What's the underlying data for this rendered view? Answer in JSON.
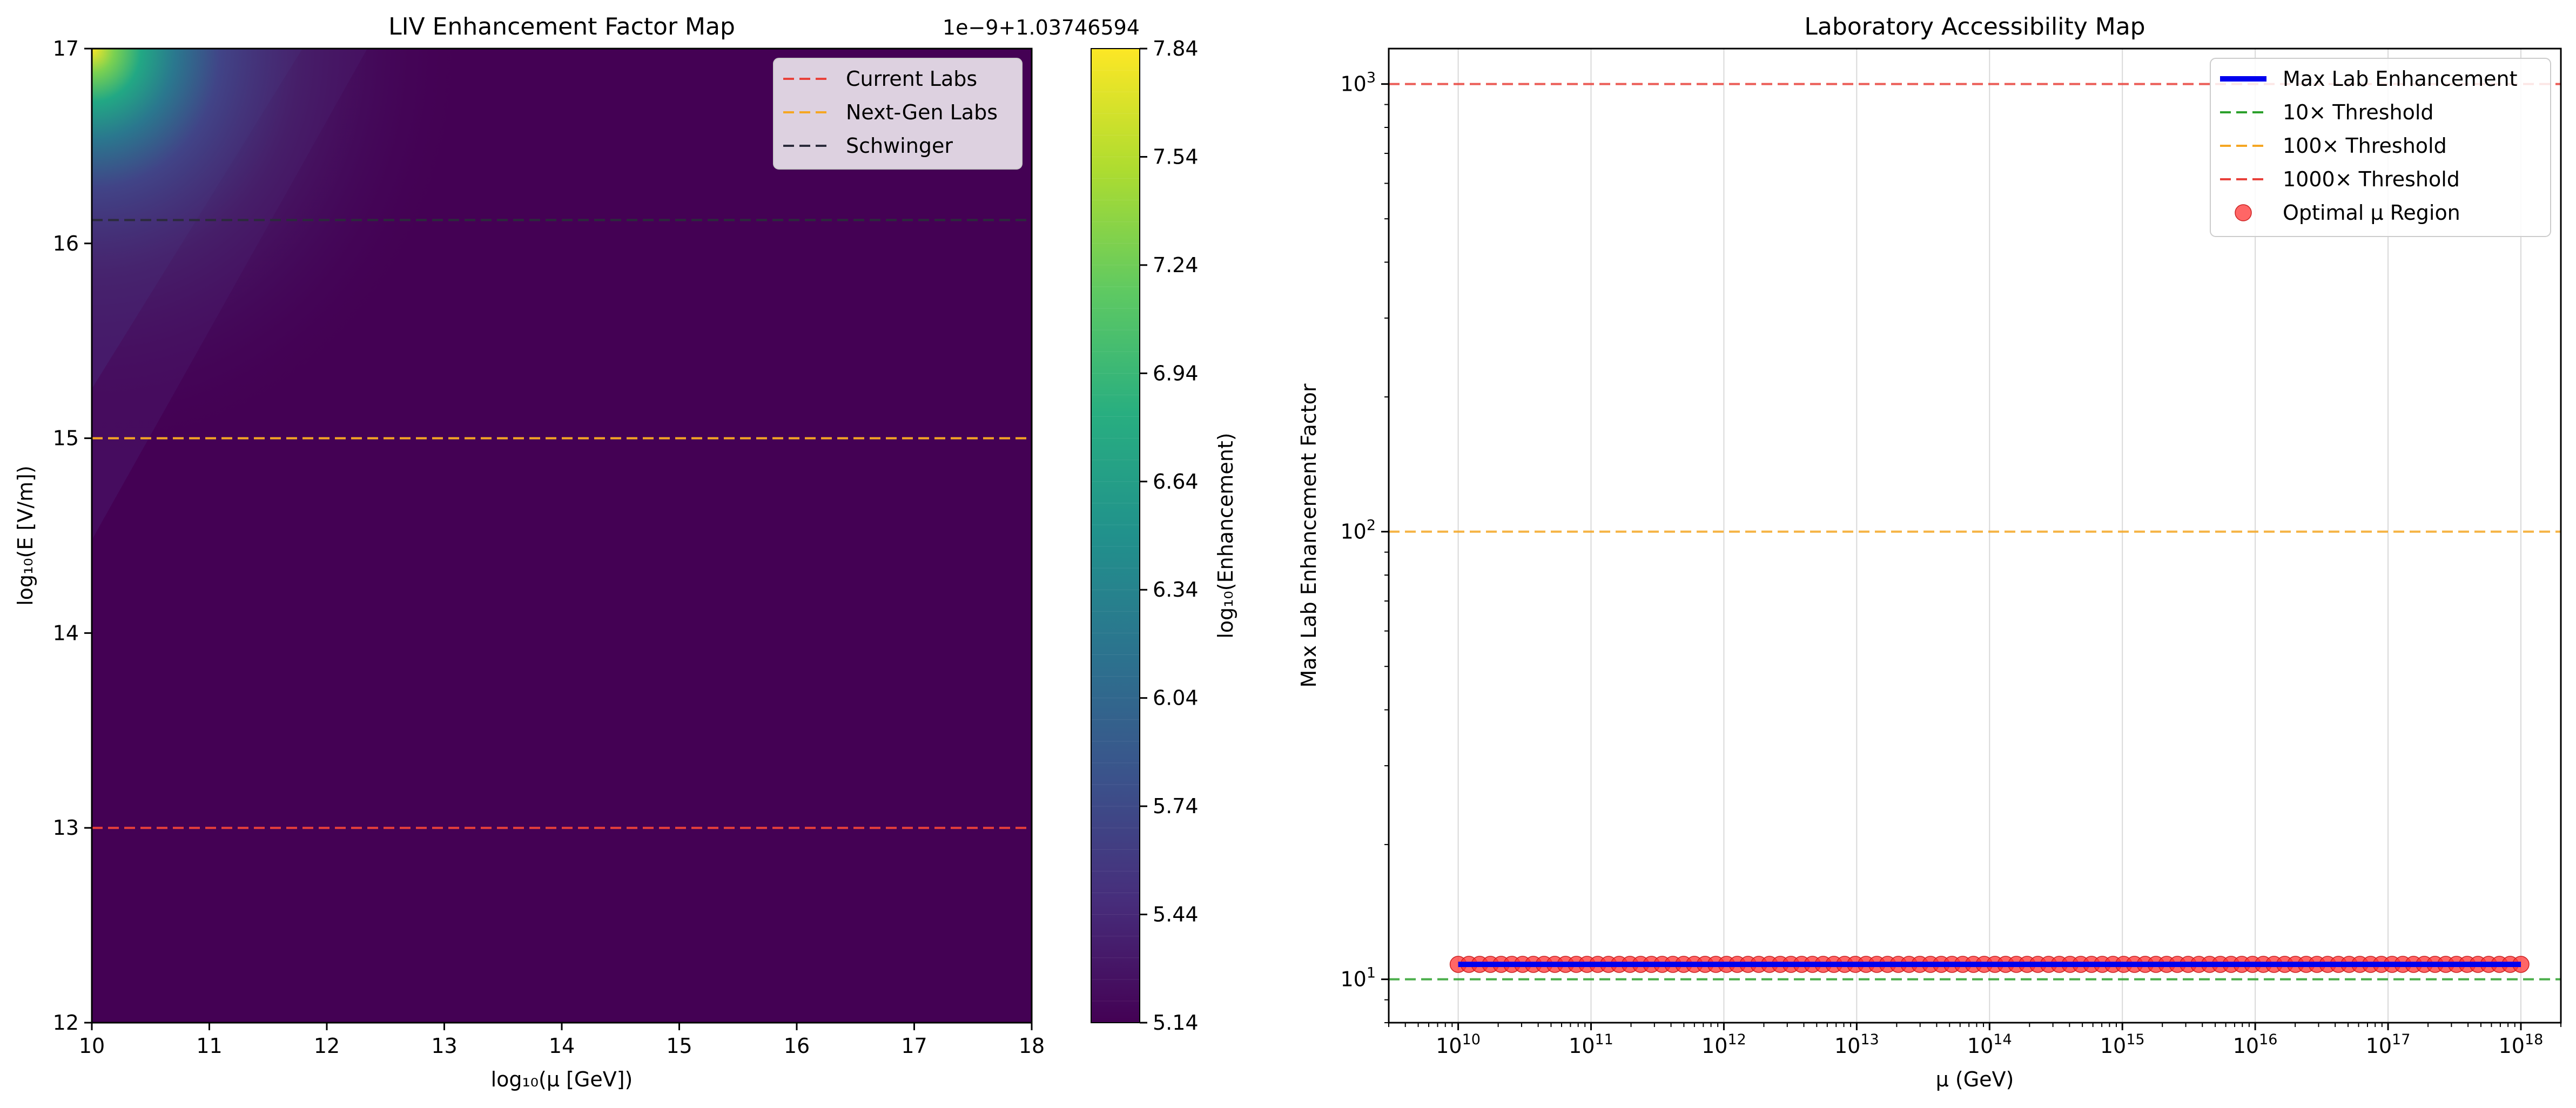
{
  "colors": {
    "viridis_low": "#440154",
    "viridis_high": "#fde725",
    "current_labs": "#e8413a",
    "next_gen_labs": "#f5a623",
    "schwinger": "#2b2b3b",
    "max_lab_line": "#0000ee",
    "threshold_10": "#2ca02c",
    "threshold_100": "#f5a623",
    "threshold_1000": "#e8413a",
    "optimal_region": "#ff3333"
  },
  "chart_data": [
    {
      "type": "heatmap",
      "title": "LIV Enhancement Factor Map",
      "xlabel": "log₁₀(μ [GeV])",
      "ylabel": "log₁₀(E [V/m])",
      "xlim": [
        10,
        18
      ],
      "ylim": [
        12,
        17
      ],
      "xticks": [
        "10",
        "11",
        "12",
        "13",
        "14",
        "15",
        "16",
        "17",
        "18"
      ],
      "yticks": [
        "12",
        "13",
        "14",
        "15",
        "16",
        "17"
      ],
      "colorbar": {
        "label": "log₁₀(Enhancement)",
        "offset_text": "1e−9+1.03746594",
        "min": 5.14,
        "max": 7.84,
        "ticks": [
          "5.14",
          "5.44",
          "5.74",
          "6.04",
          "6.34",
          "6.64",
          "6.94",
          "7.24",
          "7.54",
          "7.84"
        ]
      },
      "hlines": [
        {
          "name": "Current Labs",
          "y": 13,
          "color": "#e8413a"
        },
        {
          "name": "Next-Gen Labs",
          "y": 15,
          "color": "#f5a623"
        },
        {
          "name": "Schwinger",
          "y": 16.12,
          "color": "#2b2b3b"
        }
      ],
      "legend_labels": [
        "Current Labs",
        "Next-Gen Labs",
        "Schwinger"
      ],
      "legend_position": "top-right",
      "grid": false
    },
    {
      "type": "line",
      "title": "Laboratory Accessibility Map",
      "xlabel": "μ (GeV)",
      "ylabel": "Max Lab Enhancement Factor",
      "xscale": "log",
      "yscale": "log",
      "xlim": [
        3000000000.0,
        2e+18
      ],
      "ylim": [
        8,
        1200
      ],
      "xtick_exponents": [
        "10",
        "11",
        "12",
        "13",
        "14",
        "15",
        "16",
        "17",
        "18"
      ],
      "ytick_exponents": [
        "1",
        "2",
        "3"
      ],
      "series": [
        {
          "name": "Max Lab Enhancement",
          "kind": "line",
          "x_range": [
            10000000000.0,
            1e+18
          ],
          "y": 10.8,
          "color": "#0000ee"
        },
        {
          "name": "Optimal μ Region",
          "kind": "scatter",
          "x_range": [
            10000000000.0,
            1e+18
          ],
          "count": 100,
          "y": 10.8,
          "color": "#ff3333"
        }
      ],
      "hlines": [
        {
          "name": "10× Threshold",
          "y": 10,
          "color": "#2ca02c"
        },
        {
          "name": "100× Threshold",
          "y": 100,
          "color": "#f5a623"
        },
        {
          "name": "1000× Threshold",
          "y": 1000,
          "color": "#e8413a"
        }
      ],
      "legend_labels": [
        "Max Lab Enhancement",
        "10× Threshold",
        "100× Threshold",
        "1000× Threshold",
        "Optimal μ Region"
      ],
      "legend_position": "top-right",
      "grid": true
    }
  ]
}
